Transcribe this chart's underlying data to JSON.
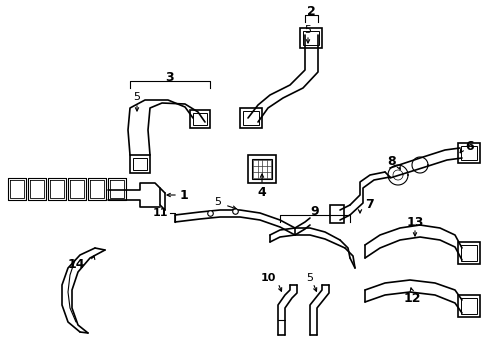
{
  "bg_color": "#ffffff",
  "line_color": "#000000",
  "label_color": "#000000",
  "figsize": [
    4.89,
    3.6
  ],
  "dpi": 100,
  "xlim": [
    0,
    489
  ],
  "ylim": [
    0,
    360
  ],
  "components": {
    "label_fontsize": 9,
    "label_fontsize_small": 8
  }
}
